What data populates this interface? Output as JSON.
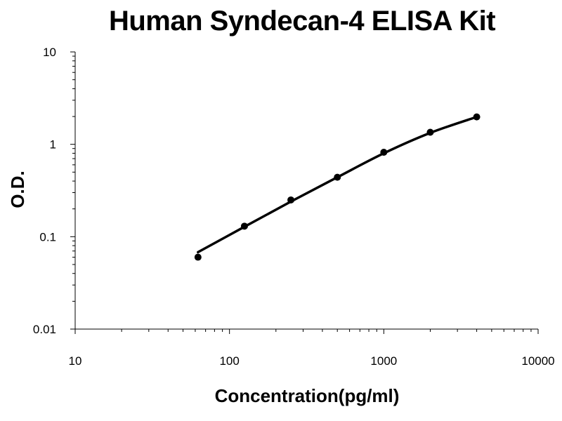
{
  "chart_data": {
    "type": "line",
    "title": "Human Syndecan-4 ELISA Kit",
    "xlabel": "Concentration(pg/ml)",
    "ylabel": "O.D.",
    "x_scale": "log",
    "y_scale": "log",
    "xlim": [
      10,
      10000
    ],
    "ylim": [
      0.01,
      10
    ],
    "x_ticks": [
      "10",
      "100",
      "1000",
      "10000"
    ],
    "y_ticks": [
      "0.01",
      "0.1",
      "1",
      "10"
    ],
    "grid": false,
    "legend": "none",
    "series": [
      {
        "x": [
          62.5,
          125,
          250,
          500,
          1000,
          2000,
          4000
        ],
        "y": [
          0.06,
          0.13,
          0.25,
          0.44,
          0.82,
          1.35,
          1.98
        ]
      }
    ],
    "fit_curve": {
      "x": [
        62.5,
        125,
        250,
        500,
        1000,
        2000,
        4000
      ],
      "y": [
        0.068,
        0.128,
        0.24,
        0.44,
        0.8,
        1.33,
        1.98
      ]
    },
    "line_color": "#000000",
    "marker_color": "#000000"
  }
}
